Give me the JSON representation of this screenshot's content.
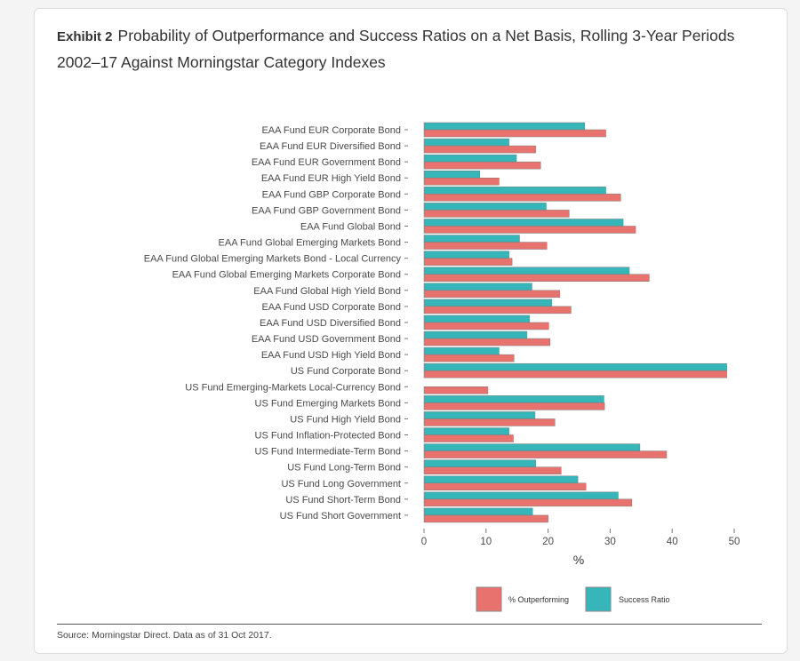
{
  "title": {
    "exhibit": "Exhibit 2",
    "text": "Probability of Outperformance and Success Ratios on a Net Basis, Rolling 3-Year Periods 2002–17 Against Morningstar Category Indexes"
  },
  "source": "Source: Morningstar Direct. Data as of 31 Oct 2017.",
  "colors": {
    "outperforming": "#e8736e",
    "success": "#36b6b9",
    "bar_edge": "#7a7a7a"
  },
  "chart_data": {
    "type": "bar",
    "orientation": "horizontal",
    "categories": [
      "EAA Fund EUR Corporate Bond",
      "EAA Fund EUR Diversified Bond",
      "EAA Fund EUR Government Bond",
      "EAA Fund EUR High Yield Bond",
      "EAA Fund GBP Corporate Bond",
      "EAA Fund GBP Government Bond",
      "EAA Fund Global Bond",
      "EAA Fund Global Emerging Markets Bond",
      "EAA Fund Global Emerging Markets Bond - Local Currency",
      "EAA Fund Global Emerging Markets Corporate Bond",
      "EAA Fund Global High Yield Bond",
      "EAA Fund USD Corporate Bond",
      "EAA Fund USD Diversified Bond",
      "EAA Fund USD Government Bond",
      "EAA Fund USD High Yield Bond",
      "US Fund Corporate Bond",
      "US Fund Emerging-Markets Local-Currency Bond",
      "US Fund Emerging Markets Bond",
      "US Fund High Yield Bond",
      "US Fund Inflation-Protected Bond",
      "US Fund Intermediate-Term Bond",
      "US Fund Long-Term Bond",
      "US Fund Long Government",
      "US Fund Short-Term Bond",
      "US Fund Short Government"
    ],
    "series": [
      {
        "name": "% Outperforming",
        "values": [
          29.3,
          18.0,
          18.8,
          12.1,
          31.7,
          23.4,
          34.1,
          19.8,
          14.2,
          36.3,
          21.9,
          23.7,
          20.1,
          20.3,
          14.5,
          48.8,
          10.3,
          29.1,
          21.1,
          14.4,
          39.1,
          22.1,
          26.1,
          33.5,
          20.0
        ]
      },
      {
        "name": "Success Ratio",
        "values": [
          25.9,
          13.7,
          14.9,
          9.0,
          29.3,
          19.7,
          32.1,
          15.4,
          13.7,
          33.1,
          17.4,
          20.6,
          17.0,
          16.6,
          12.1,
          48.8,
          0,
          29.0,
          17.9,
          13.7,
          34.8,
          18.0,
          24.8,
          31.3,
          17.5
        ]
      }
    ],
    "xlabel": "%",
    "ylabel": "",
    "xlim": [
      0,
      50
    ],
    "xticks": [
      0,
      10,
      20,
      30,
      40,
      50
    ],
    "grid": false,
    "legend": "bottom-right",
    "legend_entries": [
      "% Outperforming",
      "Success Ratio"
    ]
  }
}
